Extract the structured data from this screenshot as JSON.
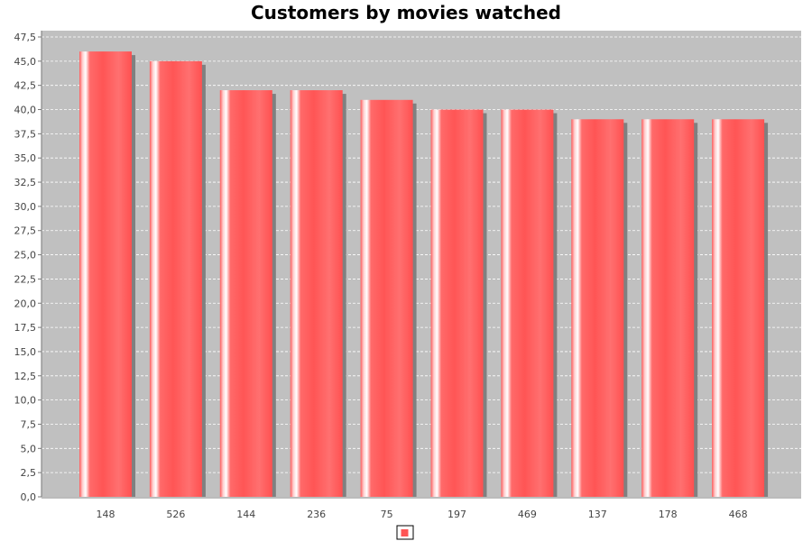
{
  "chart_data": {
    "type": "bar",
    "title": "Customers by movies watched",
    "xlabel": "",
    "ylabel": "",
    "categories": [
      "148",
      "526",
      "144",
      "236",
      "75",
      "197",
      "469",
      "137",
      "178",
      "468"
    ],
    "series": [
      {
        "values": [
          46,
          45,
          42,
          42,
          41,
          40,
          40,
          39,
          39,
          39
        ]
      }
    ],
    "ylim": [
      0,
      47.5
    ],
    "yticks": [
      "0,0",
      "2,5",
      "5,0",
      "7,5",
      "10,0",
      "12,5",
      "15,0",
      "17,5",
      "20,0",
      "22,5",
      "25,0",
      "27,5",
      "30,0",
      "32,5",
      "35,0",
      "37,5",
      "40,0",
      "42,5",
      "45,0",
      "47,5"
    ],
    "grid": true,
    "legend": "bottom-center",
    "colors": {
      "bar": "#ff5555",
      "bar_highlight": "#ffffff",
      "plot_background": "#c0c0c0",
      "gridline": "#ffffff",
      "shadow": "#808080"
    }
  }
}
